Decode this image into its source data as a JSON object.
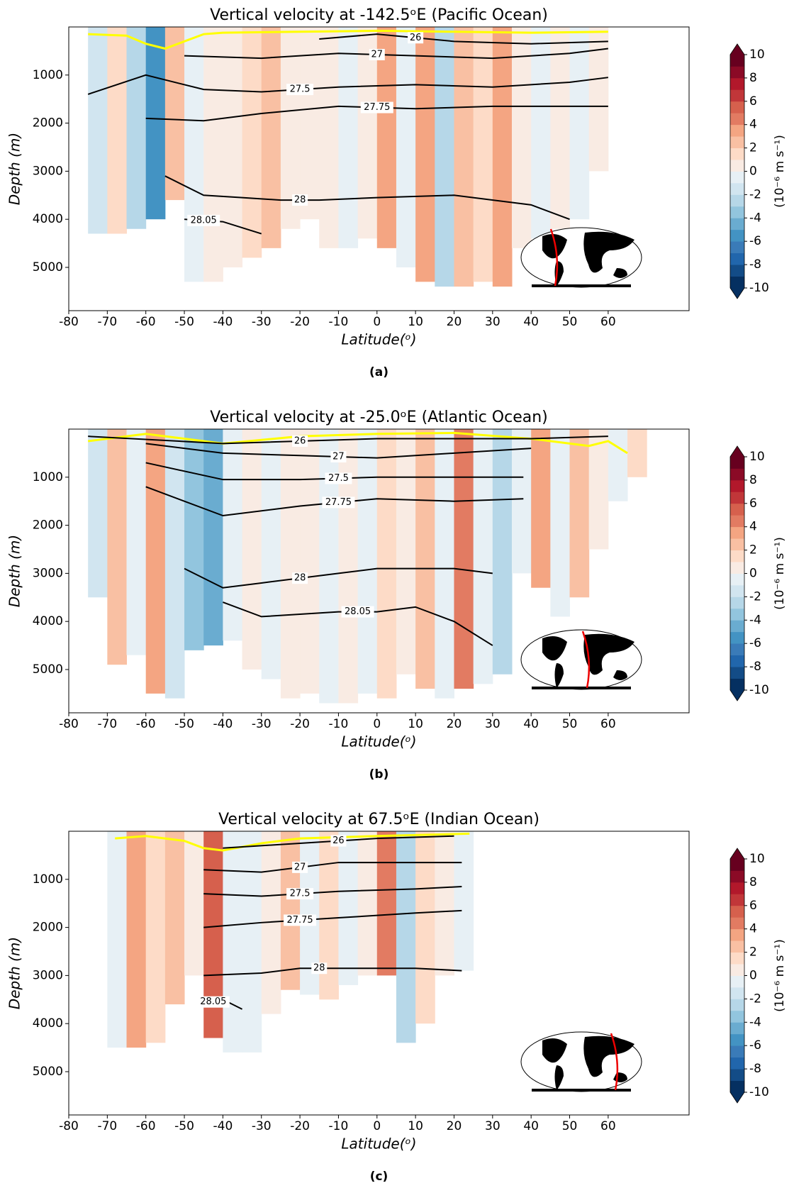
{
  "chart_data": [
    {
      "type": "contour",
      "title": "Vertical velocity at -142.5ᵒE (Pacific Ocean)",
      "xlabel": "Latitude(ᵒ)",
      "ylabel": "Depth (m)",
      "panel_label": "(a)",
      "xlim": [
        -80,
        81
      ],
      "xticks": [
        -80,
        -70,
        -60,
        -50,
        -40,
        -30,
        -20,
        -10,
        0,
        10,
        20,
        30,
        40,
        50,
        60
      ],
      "ylim": [
        0,
        5900
      ],
      "yticks": [
        1000,
        2000,
        3000,
        4000,
        5000
      ],
      "y_inverted": true,
      "field": {
        "lat_edges": [
          -75,
          -70,
          -65,
          -60,
          -55,
          -50,
          -45,
          -40,
          -35,
          -30,
          -25,
          -20,
          -15,
          -10,
          -5,
          0,
          5,
          10,
          15,
          20,
          25,
          30,
          35,
          40,
          45,
          50,
          55,
          60
        ],
        "values": [
          -2,
          1,
          -3,
          -6,
          2,
          -1,
          0.5,
          0.5,
          1,
          2,
          0.5,
          0.5,
          0.5,
          -1,
          0.5,
          3,
          -1,
          3,
          -3,
          2,
          1,
          3,
          0.5,
          -0.5,
          0.5,
          -0.5,
          0.5
        ],
        "bottom": [
          4300,
          4300,
          4200,
          4000,
          3600,
          5300,
          5300,
          5000,
          4800,
          4600,
          4200,
          4000,
          4600,
          4600,
          4400,
          4600,
          5000,
          5300,
          5400,
          5400,
          5300,
          5400,
          4600,
          4400,
          4200,
          4000,
          3000
        ]
      },
      "series": [
        {
          "name": "26",
          "color": "#000000",
          "x": [
            -15,
            0,
            20,
            40,
            60
          ],
          "values": [
            250,
            150,
            300,
            350,
            300
          ]
        },
        {
          "name": "27",
          "color": "#000000",
          "x": [
            -50,
            -30,
            -10,
            10,
            30,
            50,
            60
          ],
          "values": [
            600,
            650,
            550,
            600,
            650,
            550,
            450
          ]
        },
        {
          "name": "27.5",
          "color": "#000000",
          "x": [
            -75,
            -60,
            -45,
            -30,
            -10,
            10,
            30,
            50,
            60
          ],
          "values": [
            1400,
            1000,
            1300,
            1350,
            1250,
            1200,
            1250,
            1150,
            1050
          ]
        },
        {
          "name": "27.75",
          "color": "#000000",
          "x": [
            -60,
            -45,
            -30,
            -10,
            10,
            30,
            50,
            60
          ],
          "values": [
            1900,
            1950,
            1800,
            1650,
            1700,
            1650,
            1650,
            1650
          ]
        },
        {
          "name": "28",
          "color": "#000000",
          "x": [
            -55,
            -45,
            -35,
            -25,
            -15,
            0,
            20,
            40,
            50
          ],
          "values": [
            3100,
            3500,
            3550,
            3600,
            3600,
            3550,
            3500,
            3700,
            4000
          ]
        },
        {
          "name": "28.05",
          "color": "#000000",
          "x": [
            -50,
            -40,
            -30
          ],
          "values": [
            4000,
            4050,
            4300
          ]
        }
      ],
      "surface_line": {
        "color": "#ffff00",
        "x": [
          -75,
          -65,
          -60,
          -55,
          -50,
          -45,
          -40,
          -20,
          0,
          20,
          40,
          60
        ],
        "values": [
          150,
          180,
          350,
          450,
          300,
          150,
          120,
          100,
          80,
          100,
          120,
          100
        ]
      },
      "colorbar": {
        "label": "(10⁻⁶ m s⁻¹)",
        "ticks": [
          10,
          8,
          6,
          4,
          2,
          0,
          -2,
          -4,
          -6,
          -8,
          -10
        ],
        "lim": [
          -10,
          10
        ],
        "colors": [
          "#053061",
          "#134c87",
          "#2166ac",
          "#3a7bb8",
          "#4393c3",
          "#6aacd0",
          "#92c5de",
          "#b6d7e8",
          "#d1e5f0",
          "#e7f0f5",
          "#f9ebe3",
          "#fddbc7",
          "#f9c0a3",
          "#f4a582",
          "#e27b62",
          "#d6604d",
          "#c13639",
          "#b2182b",
          "#8b0a26",
          "#67001f"
        ]
      }
    },
    {
      "type": "contour",
      "title": "Vertical velocity at -25.0ᵒE (Atlantic Ocean)",
      "xlabel": "Latitude(ᵒ)",
      "ylabel": "Depth (m)",
      "panel_label": "(b)",
      "xlim": [
        -80,
        81
      ],
      "xticks": [
        -80,
        -70,
        -60,
        -50,
        -40,
        -30,
        -20,
        -10,
        0,
        10,
        20,
        30,
        40,
        50,
        60
      ],
      "ylim": [
        0,
        5900
      ],
      "yticks": [
        1000,
        2000,
        3000,
        4000,
        5000
      ],
      "y_inverted": true,
      "field": {
        "lat_edges": [
          -75,
          -70,
          -65,
          -60,
          -55,
          -50,
          -45,
          -40,
          -35,
          -30,
          -25,
          -20,
          -15,
          -10,
          -5,
          0,
          5,
          10,
          15,
          20,
          25,
          30,
          35,
          40,
          45,
          50,
          55,
          60,
          65,
          70
        ],
        "values": [
          -2,
          2,
          -1,
          3,
          -2,
          -4,
          -5,
          -1,
          0.5,
          -0.5,
          0.5,
          0.5,
          -0.5,
          0.5,
          -0.5,
          1,
          0.5,
          2,
          -1,
          4,
          -1,
          -3,
          -1,
          3,
          -1,
          2,
          0.5,
          -1,
          1
        ],
        "bottom": [
          3500,
          4900,
          4700,
          5500,
          5600,
          4600,
          4500,
          4400,
          5000,
          5200,
          5600,
          5500,
          5700,
          5700,
          5500,
          5600,
          5100,
          5400,
          5600,
          5400,
          5300,
          5100,
          3000,
          3300,
          3900,
          3500,
          2500,
          1500,
          1000
        ]
      },
      "series": [
        {
          "name": "26",
          "color": "#000000",
          "x": [
            -75,
            -40,
            0,
            40,
            60
          ],
          "values": [
            150,
            300,
            200,
            200,
            150
          ]
        },
        {
          "name": "27",
          "color": "#000000",
          "x": [
            -60,
            -40,
            -20,
            0,
            20,
            40
          ],
          "values": [
            300,
            500,
            550,
            600,
            500,
            400
          ]
        },
        {
          "name": "27.5",
          "color": "#000000",
          "x": [
            -60,
            -40,
            -20,
            0,
            20,
            38
          ],
          "values": [
            700,
            1050,
            1050,
            1000,
            1000,
            1000
          ]
        },
        {
          "name": "27.75",
          "color": "#000000",
          "x": [
            -60,
            -40,
            -20,
            0,
            20,
            38
          ],
          "values": [
            1200,
            1800,
            1600,
            1450,
            1500,
            1450
          ]
        },
        {
          "name": "28",
          "color": "#000000",
          "x": [
            -50,
            -40,
            -30,
            -10,
            0,
            20,
            30
          ],
          "values": [
            2900,
            3300,
            3200,
            3000,
            2900,
            2900,
            3000
          ]
        },
        {
          "name": "28.05",
          "color": "#000000",
          "x": [
            -40,
            -30,
            -10,
            0,
            10,
            20,
            30
          ],
          "values": [
            3600,
            3900,
            3800,
            3800,
            3700,
            4000,
            4500
          ]
        }
      ],
      "surface_line": {
        "color": "#ffff00",
        "x": [
          -75,
          -60,
          -40,
          -20,
          0,
          20,
          40,
          55,
          60,
          65
        ],
        "values": [
          250,
          100,
          300,
          150,
          100,
          80,
          200,
          350,
          250,
          500
        ]
      },
      "colorbar": {
        "label": "(10⁻⁶ m s⁻¹)",
        "ticks": [
          10,
          8,
          6,
          4,
          2,
          0,
          -2,
          -4,
          -6,
          -8,
          -10
        ],
        "lim": [
          -10,
          10
        ],
        "colors": [
          "#053061",
          "#134c87",
          "#2166ac",
          "#3a7bb8",
          "#4393c3",
          "#6aacd0",
          "#92c5de",
          "#b6d7e8",
          "#d1e5f0",
          "#e7f0f5",
          "#f9ebe3",
          "#fddbc7",
          "#f9c0a3",
          "#f4a582",
          "#e27b62",
          "#d6604d",
          "#c13639",
          "#b2182b",
          "#8b0a26",
          "#67001f"
        ]
      }
    },
    {
      "type": "contour",
      "title": "Vertical velocity at 67.5ᵒE (Indian Ocean)",
      "xlabel": "Latitude(ᵒ)",
      "ylabel": "Depth (m)",
      "panel_label": "(c)",
      "xlim": [
        -80,
        81
      ],
      "xticks": [
        -80,
        -70,
        -60,
        -50,
        -40,
        -30,
        -20,
        -10,
        0,
        10,
        20,
        30,
        40,
        50,
        60
      ],
      "ylim": [
        0,
        5900
      ],
      "yticks": [
        1000,
        2000,
        3000,
        4000,
        5000
      ],
      "y_inverted": true,
      "field": {
        "lat_edges": [
          -70,
          -65,
          -60,
          -55,
          -50,
          -45,
          -40,
          -35,
          -30,
          -25,
          -20,
          -15,
          -10,
          -5,
          0,
          5,
          10,
          15,
          20,
          25
        ],
        "values": [
          -1,
          3,
          1,
          2,
          0,
          5,
          -1,
          -0.5,
          0.5,
          2,
          -0.5,
          1,
          -1,
          0.5,
          4,
          -3,
          1,
          0.5,
          -0.5
        ],
        "bottom": [
          4500,
          4500,
          4400,
          3600,
          3000,
          4300,
          4600,
          4600,
          3800,
          3300,
          3400,
          3500,
          3200,
          3000,
          3000,
          4400,
          4000,
          3000,
          2900
        ]
      },
      "series": [
        {
          "name": "26",
          "color": "#000000",
          "x": [
            -40,
            -20,
            0,
            20
          ],
          "values": [
            350,
            250,
            150,
            100
          ]
        },
        {
          "name": "27",
          "color": "#000000",
          "x": [
            -45,
            -30,
            -10,
            10,
            22
          ],
          "values": [
            800,
            850,
            650,
            650,
            650
          ]
        },
        {
          "name": "27.5",
          "color": "#000000",
          "x": [
            -45,
            -30,
            -10,
            10,
            22
          ],
          "values": [
            1300,
            1350,
            1250,
            1200,
            1150
          ]
        },
        {
          "name": "27.75",
          "color": "#000000",
          "x": [
            -45,
            -30,
            -10,
            10,
            22
          ],
          "values": [
            2000,
            1900,
            1800,
            1700,
            1650
          ]
        },
        {
          "name": "28",
          "color": "#000000",
          "x": [
            -45,
            -30,
            -20,
            -10,
            0,
            10,
            22
          ],
          "values": [
            3000,
            2950,
            2850,
            2850,
            2850,
            2850,
            2900
          ]
        },
        {
          "name": "28.05",
          "color": "#000000",
          "x": [
            -45,
            -40,
            -35
          ],
          "values": [
            3600,
            3500,
            3700
          ]
        }
      ],
      "surface_line": {
        "color": "#ffff00",
        "x": [
          -68,
          -60,
          -50,
          -45,
          -40,
          -30,
          -20,
          0,
          24
        ],
        "values": [
          150,
          100,
          200,
          350,
          400,
          250,
          150,
          100,
          50
        ]
      },
      "colorbar": {
        "label": "(10⁻⁶ m s⁻¹)",
        "ticks": [
          10,
          8,
          6,
          4,
          2,
          0,
          -2,
          -4,
          -6,
          -8,
          -10
        ],
        "lim": [
          -10,
          10
        ],
        "colors": [
          "#053061",
          "#134c87",
          "#2166ac",
          "#3a7bb8",
          "#4393c3",
          "#6aacd0",
          "#92c5de",
          "#b6d7e8",
          "#d1e5f0",
          "#e7f0f5",
          "#f9ebe3",
          "#fddbc7",
          "#f9c0a3",
          "#f4a582",
          "#e27b62",
          "#d6604d",
          "#c13639",
          "#b2182b",
          "#8b0a26",
          "#67001f"
        ]
      }
    }
  ]
}
